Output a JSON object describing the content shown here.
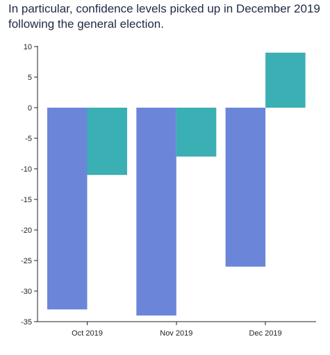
{
  "title": "In particular, confidence levels picked up in December 2019 following the general election.",
  "colors": {
    "series_a": "#6b86d8",
    "series_b": "#3aafb4",
    "axis": "#222222"
  },
  "chart_data": {
    "type": "bar",
    "title": "In particular, confidence levels picked up in December 2019 following the general election.",
    "xlabel": "",
    "ylabel": "",
    "categories": [
      "Oct 2019",
      "Nov 2019",
      "Dec 2019"
    ],
    "series": [
      {
        "color": "#6b86d8",
        "values": [
          -33,
          -34,
          -26
        ]
      },
      {
        "color": "#3aafb4",
        "values": [
          -11,
          -8,
          9
        ]
      }
    ],
    "ylim": [
      -35,
      10
    ],
    "yticks": [
      10,
      5,
      0,
      -5,
      -10,
      -15,
      -20,
      -25,
      -30,
      -35
    ],
    "grid": false,
    "legend": "none"
  }
}
